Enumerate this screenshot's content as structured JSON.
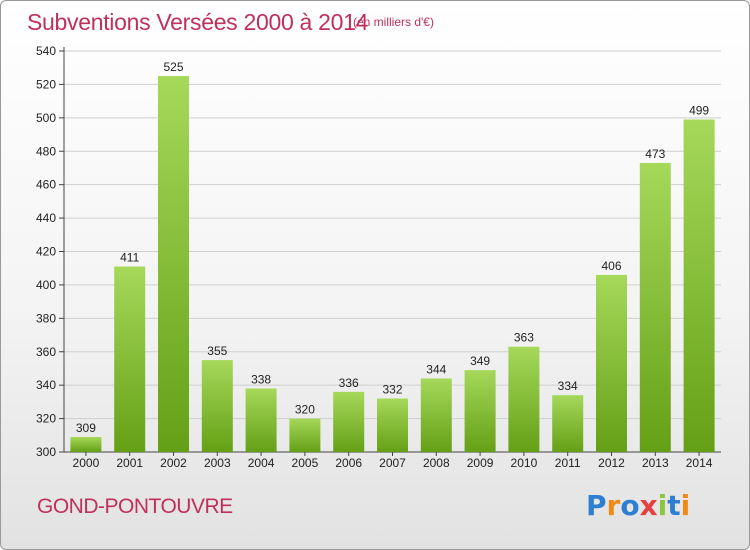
{
  "title": "Subventions Versées 2000 à 2014",
  "unit_note": "(en milliers d'€)",
  "commune": "GOND-PONTOUVRE",
  "logo": {
    "letters": [
      {
        "char": "P",
        "color": "#2e7fd1"
      },
      {
        "char": "r",
        "color": "#f08a16"
      },
      {
        "char": "o",
        "color": "#2e7fd1"
      },
      {
        "char": "x",
        "color": "#e64040"
      },
      {
        "char": "i",
        "color": "#8cc63f"
      },
      {
        "char": "t",
        "color": "#2e7fd1"
      },
      {
        "char": "i",
        "color": "#f08a16"
      }
    ]
  },
  "colors": {
    "bar_light": "#a6d85a",
    "bar_dark": "#64a016",
    "title": "#c0305a",
    "grid": "#cfcfcf"
  },
  "chart_data": {
    "type": "bar",
    "title": "Subventions Versées 2000 à 2014",
    "categories": [
      "2000",
      "2001",
      "2002",
      "2003",
      "2004",
      "2005",
      "2006",
      "2007",
      "2008",
      "2009",
      "2010",
      "2011",
      "2012",
      "2013",
      "2014"
    ],
    "values": [
      309,
      411,
      525,
      355,
      338,
      320,
      336,
      332,
      344,
      349,
      363,
      334,
      406,
      473,
      499
    ],
    "ylim": [
      300,
      540
    ],
    "yticks": [
      300,
      320,
      340,
      360,
      380,
      400,
      420,
      440,
      460,
      480,
      500,
      520,
      540
    ],
    "grid": true,
    "xlabel": "",
    "ylabel": ""
  }
}
